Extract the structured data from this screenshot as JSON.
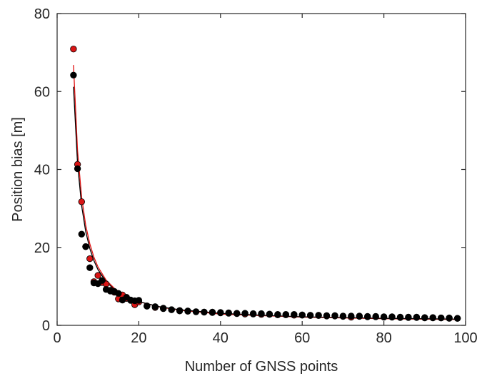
{
  "chart_data": {
    "type": "scatter",
    "title": "",
    "xlabel": "Number of GNSS points",
    "ylabel": "Position bias [m]",
    "xlim": [
      0,
      100
    ],
    "ylim": [
      0,
      80
    ],
    "xticks": [
      0,
      20,
      40,
      60,
      80,
      100
    ],
    "yticks": [
      0,
      20,
      40,
      60,
      80
    ],
    "xtick_labels": [
      "0",
      "20",
      "40",
      "60",
      "80",
      "100"
    ],
    "ytick_labels": [
      "0",
      "20",
      "40",
      "60",
      "80"
    ],
    "grid": false,
    "legend": "none",
    "colors": {
      "red_series": "#d91515",
      "black_series": "#000000",
      "red_line": "#e01010",
      "black_line": "#000000",
      "axis": "#262626",
      "marker_edge": "#000000"
    },
    "series": [
      {
        "marker_color": "#d91515",
        "x": [
          4,
          5,
          6,
          7,
          8,
          9,
          10,
          11,
          12,
          13,
          14,
          15,
          16,
          17,
          18,
          19,
          20,
          22,
          24,
          26,
          28,
          30,
          32,
          34,
          36,
          38,
          40,
          42,
          44,
          46,
          48,
          50,
          52,
          54,
          56,
          58,
          60,
          62,
          64,
          66,
          68,
          70,
          72,
          74,
          76,
          78,
          80,
          82,
          84,
          86,
          88,
          90,
          92,
          94,
          96,
          98
        ],
        "y": [
          70.9,
          41.3,
          31.7,
          20.2,
          17.1,
          11.2,
          12.8,
          11.0,
          10.6,
          9.0,
          8.5,
          6.8,
          7.8,
          6.9,
          6.4,
          5.3,
          6.0,
          5.0,
          4.6,
          4.4,
          4.0,
          3.8,
          3.6,
          3.5,
          3.4,
          3.3,
          3.2,
          3.1,
          3.0,
          2.9,
          2.9,
          2.8,
          2.8,
          2.7,
          2.7,
          2.6,
          2.6,
          2.5,
          2.5,
          2.4,
          2.4,
          2.3,
          2.1,
          2.3,
          2.2,
          2.2,
          2.1,
          2.1,
          2.0,
          2.0,
          2.0,
          1.9,
          1.9,
          1.9,
          1.8,
          1.8
        ]
      },
      {
        "marker_color": "#000000",
        "x": [
          4,
          5,
          6,
          7,
          8,
          9,
          10,
          11,
          12,
          13,
          14,
          15,
          16,
          17,
          18,
          19,
          20,
          22,
          24,
          26,
          28,
          30,
          32,
          34,
          36,
          38,
          40,
          42,
          44,
          46,
          48,
          50,
          52,
          54,
          56,
          58,
          60,
          62,
          64,
          66,
          68,
          70,
          72,
          74,
          76,
          78,
          80,
          82,
          84,
          86,
          88,
          90,
          92,
          94,
          96,
          98
        ],
        "y": [
          64.2,
          40.2,
          23.4,
          20.2,
          14.8,
          10.9,
          10.7,
          11.5,
          9.2,
          8.8,
          8.7,
          8.2,
          6.5,
          7.2,
          6.5,
          6.3,
          6.4,
          4.9,
          4.8,
          4.3,
          4.0,
          3.7,
          3.7,
          3.5,
          3.4,
          3.4,
          3.3,
          3.2,
          3.1,
          3.1,
          3.0,
          3.0,
          2.9,
          2.8,
          2.8,
          2.8,
          2.7,
          2.6,
          2.6,
          2.5,
          2.5,
          2.4,
          2.4,
          2.4,
          2.3,
          2.3,
          2.2,
          2.2,
          2.1,
          2.1,
          2.1,
          2.0,
          2.0,
          1.9,
          1.9,
          1.8
        ]
      }
    ],
    "fit_curves": [
      {
        "color": "#e01010",
        "x": [
          4,
          5,
          6,
          7,
          8,
          9,
          10,
          12,
          14,
          16,
          18,
          20,
          25,
          30,
          40,
          50,
          60,
          70,
          80,
          90,
          98
        ],
        "y": [
          66.8,
          44.8,
          32.9,
          25.7,
          20.9,
          17.5,
          15.0,
          11.6,
          9.5,
          8.0,
          6.9,
          6.1,
          4.7,
          3.9,
          2.9,
          2.5,
          2.1,
          1.9,
          1.7,
          1.6,
          1.5
        ]
      },
      {
        "color": "#000000",
        "x": [
          4,
          5,
          6,
          7,
          8,
          9,
          10,
          12,
          14,
          16,
          18,
          20,
          25,
          30,
          40,
          50,
          60,
          70,
          80,
          90,
          98
        ],
        "y": [
          61.2,
          41.5,
          30.7,
          24.1,
          19.7,
          16.6,
          14.3,
          11.2,
          9.2,
          7.9,
          6.9,
          6.1,
          4.8,
          4.0,
          3.1,
          2.6,
          2.2,
          2.0,
          1.8,
          1.7,
          1.6
        ]
      }
    ]
  }
}
